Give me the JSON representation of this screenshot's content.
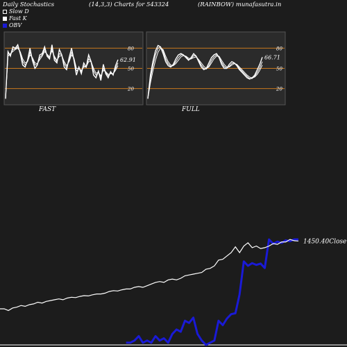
{
  "header": {
    "left": "Daily Stochastics",
    "center": "(14,3,3) Charts for 543324",
    "right": "(RAINBOW) munafasutra.in"
  },
  "legend": [
    {
      "label": "Slow  D",
      "swatch": "hollow"
    },
    {
      "label": "Fast K",
      "swatch": "solid"
    },
    {
      "label": "OBV",
      "swatch": "blue"
    }
  ],
  "colors": {
    "background": "#1c1c1c",
    "panel": "#2b2b2b",
    "level_line": "#c8781e",
    "price_line": "#ffffff",
    "obv_line": "#1a1ad6"
  },
  "chart_data": [
    {
      "type": "line",
      "name": "fast-stochastics",
      "caption": "FAST",
      "y_ticks": [
        "80",
        "50",
        "20"
      ],
      "levels": [
        80,
        50,
        20
      ],
      "ylim": [
        0,
        100
      ],
      "last_value_label": "62.91",
      "series": [
        {
          "values": [
            5,
            75,
            68,
            82,
            80,
            85,
            72,
            55,
            52,
            62,
            80,
            62,
            50,
            55,
            70,
            72,
            82,
            68,
            64,
            85,
            62,
            58,
            78,
            70,
            52,
            48,
            66,
            80,
            62,
            40,
            52,
            42,
            58,
            52,
            70,
            60,
            40,
            36,
            46,
            32,
            56,
            42,
            36,
            45,
            40,
            54,
            62.91
          ]
        },
        {
          "values": [
            5,
            72,
            70,
            78,
            79,
            82,
            74,
            60,
            55,
            60,
            74,
            65,
            55,
            56,
            66,
            70,
            78,
            70,
            66,
            80,
            66,
            60,
            72,
            70,
            57,
            51,
            62,
            74,
            64,
            46,
            50,
            45,
            54,
            52,
            64,
            60,
            46,
            40,
            44,
            36,
            50,
            44,
            39,
            43,
            42,
            50,
            58
          ]
        },
        {
          "values": [
            5,
            68,
            72,
            75,
            78,
            80,
            75,
            64,
            58,
            60,
            70,
            66,
            58,
            57,
            63,
            68,
            75,
            71,
            67,
            76,
            68,
            62,
            68,
            69,
            60,
            54,
            60,
            70,
            65,
            50,
            50,
            47,
            52,
            52,
            60,
            60,
            50,
            43,
            44,
            39,
            47,
            45,
            41,
            42,
            42,
            47,
            54
          ]
        }
      ]
    },
    {
      "type": "line",
      "name": "full-stochastics",
      "caption": "FULL",
      "y_ticks": [
        "80",
        "50",
        "20"
      ],
      "levels": [
        80,
        50,
        20
      ],
      "ylim": [
        0,
        100
      ],
      "last_value_label": "66.71",
      "series": [
        {
          "values": [
            5,
            40,
            60,
            76,
            84,
            82,
            72,
            60,
            54,
            52,
            56,
            64,
            70,
            72,
            70,
            66,
            62,
            66,
            72,
            68,
            60,
            52,
            48,
            50,
            58,
            66,
            70,
            72,
            66,
            56,
            50,
            50,
            56,
            60,
            58,
            54,
            48,
            44,
            40,
            36,
            34,
            36,
            40,
            48,
            56,
            66.71
          ]
        },
        {
          "values": [
            5,
            34,
            54,
            70,
            80,
            82,
            76,
            64,
            57,
            53,
            54,
            60,
            66,
            70,
            70,
            67,
            63,
            64,
            69,
            68,
            62,
            55,
            50,
            49,
            54,
            62,
            67,
            70,
            67,
            59,
            53,
            50,
            53,
            57,
            58,
            55,
            50,
            46,
            42,
            38,
            35,
            35,
            38,
            44,
            51,
            60
          ]
        },
        {
          "values": [
            5,
            28,
            46,
            62,
            74,
            80,
            78,
            68,
            60,
            55,
            54,
            57,
            62,
            67,
            69,
            68,
            65,
            64,
            66,
            67,
            63,
            58,
            53,
            50,
            52,
            58,
            64,
            68,
            68,
            62,
            56,
            52,
            52,
            55,
            57,
            56,
            52,
            48,
            44,
            40,
            37,
            36,
            37,
            41,
            47,
            55
          ]
        }
      ]
    },
    {
      "type": "line",
      "name": "price-obv",
      "price_label": "1450.40",
      "price_label_suffix": "Close",
      "series": [
        {
          "values": [
            1040,
            1040,
            1030,
            1045,
            1050,
            1060,
            1055,
            1065,
            1070,
            1080,
            1075,
            1085,
            1090,
            1095,
            1100,
            1095,
            1105,
            1110,
            1108,
            1115,
            1120,
            1118,
            1125,
            1130,
            1130,
            1135,
            1145,
            1150,
            1148,
            1155,
            1160,
            1160,
            1170,
            1175,
            1170,
            1180,
            1190,
            1200,
            1205,
            1200,
            1215,
            1220,
            1215,
            1225,
            1240,
            1245,
            1250,
            1255,
            1260,
            1280,
            1285,
            1300,
            1335,
            1340,
            1360,
            1380,
            1415,
            1380,
            1420,
            1440,
            1410,
            1420,
            1405,
            1410,
            1420,
            1435,
            1430,
            1445,
            1445,
            1460,
            1452,
            1450.4
          ]
        },
        {
          "values": [
            null,
            null,
            null,
            null,
            null,
            null,
            null,
            null,
            null,
            null,
            null,
            null,
            null,
            null,
            null,
            null,
            null,
            null,
            null,
            null,
            null,
            null,
            null,
            null,
            null,
            null,
            null,
            null,
            null,
            null,
            5,
            5,
            10,
            20,
            5,
            10,
            5,
            20,
            10,
            15,
            5,
            25,
            35,
            30,
            55,
            50,
            62,
            25,
            10,
            0,
            5,
            10,
            55,
            45,
            60,
            70,
            72,
            115,
            190,
            180,
            186,
            182,
            185,
            175,
            240,
            230,
            235,
            232,
            238,
            236,
            240,
            240
          ]
        }
      ]
    }
  ]
}
